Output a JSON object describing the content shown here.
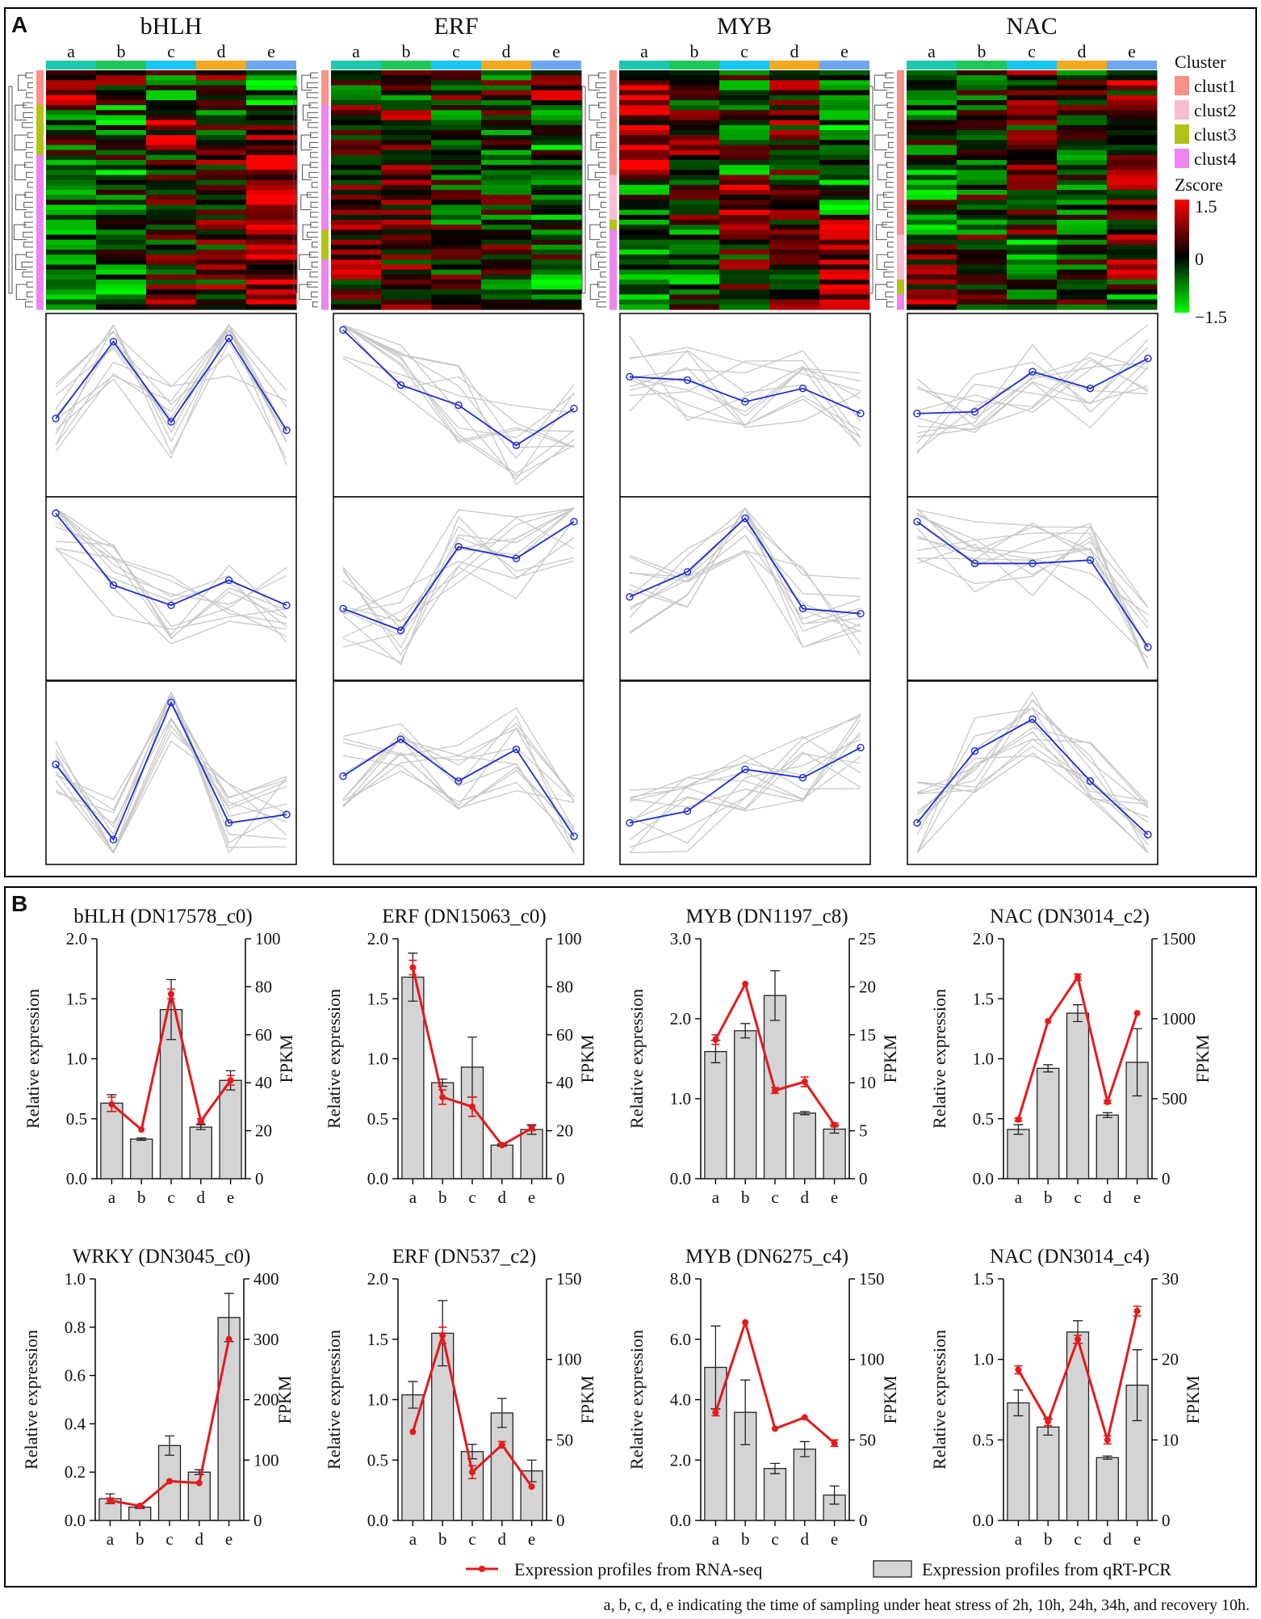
{
  "panel_a": {
    "letter": "A",
    "families": [
      "bHLH",
      "ERF",
      "MYB",
      "NAC"
    ],
    "sample_labels": [
      "a",
      "b",
      "c",
      "d",
      "e"
    ],
    "sample_colors": [
      "#1ec8b0",
      "#1fc75a",
      "#19c6ef",
      "#f2a922",
      "#6ea6f0"
    ],
    "cluster_legend": {
      "title": "Cluster",
      "items": [
        {
          "label": "clust1",
          "color": "#f7918a"
        },
        {
          "label": "clust2",
          "color": "#f7bcd0"
        },
        {
          "label": "clust3",
          "color": "#b2c217"
        },
        {
          "label": "clust4",
          "color": "#ee84ee"
        }
      ]
    },
    "zscore_legend": {
      "title": "Zscore",
      "ticks": [
        "1.5",
        "0",
        "−1.5"
      ],
      "colors": {
        "high": "#ff0000",
        "mid": "#000000",
        "low": "#00ff00"
      }
    },
    "heatmaps": [
      {
        "family": "bHLH",
        "rows": 48,
        "cluster_bar": [
          [
            "clust1",
            0.14
          ],
          [
            "clust3",
            0.2
          ],
          [
            "clust4",
            0.66
          ]
        ]
      },
      {
        "family": "ERF",
        "rows": 48,
        "cluster_bar": [
          [
            "clust1",
            0.14
          ],
          [
            "clust4",
            0.52
          ],
          [
            "clust3",
            0.12
          ],
          [
            "clust4",
            0.22
          ]
        ]
      },
      {
        "family": "MYB",
        "rows": 48,
        "cluster_bar": [
          [
            "clust1",
            0.44
          ],
          [
            "clust2",
            0.19
          ],
          [
            "clust3",
            0.04
          ],
          [
            "clust4",
            0.33
          ]
        ]
      },
      {
        "family": "NAC",
        "rows": 48,
        "cluster_bar": [
          [
            "clust1",
            0.68
          ],
          [
            "clust2",
            0.18
          ],
          [
            "clust3",
            0.06
          ],
          [
            "clust4",
            0.08
          ]
        ]
      }
    ],
    "profiles": [
      [
        {
          "mean": [
            0.42,
            0.88,
            0.4,
            0.9,
            0.35
          ]
        },
        {
          "mean": [
            0.95,
            0.52,
            0.4,
            0.55,
            0.4
          ]
        },
        {
          "mean": [
            0.55,
            0.1,
            0.92,
            0.2,
            0.25
          ]
        }
      ],
      [
        {
          "mean": [
            0.95,
            0.62,
            0.5,
            0.26,
            0.48
          ]
        },
        {
          "mean": [
            0.38,
            0.25,
            0.75,
            0.68,
            0.9
          ]
        },
        {
          "mean": [
            0.48,
            0.7,
            0.45,
            0.64,
            0.12
          ]
        }
      ],
      [
        {
          "mean": [
            0.67,
            0.65,
            0.52,
            0.6,
            0.45
          ]
        },
        {
          "mean": [
            0.45,
            0.6,
            0.92,
            0.38,
            0.35
          ]
        },
        {
          "mean": [
            0.2,
            0.27,
            0.52,
            0.47,
            0.65
          ]
        }
      ],
      [
        {
          "mean": [
            0.45,
            0.46,
            0.7,
            0.6,
            0.78
          ]
        },
        {
          "mean": [
            0.9,
            0.65,
            0.65,
            0.67,
            0.15
          ]
        },
        {
          "mean": [
            0.2,
            0.63,
            0.82,
            0.45,
            0.13
          ]
        }
      ]
    ]
  },
  "panel_b": {
    "letter": "B",
    "left_axis_label": "Relative expression",
    "right_axis_label": "FPKM",
    "categories": [
      "a",
      "b",
      "c",
      "d",
      "e"
    ],
    "legend": {
      "line": "Expression profiles from RNA-seq",
      "bar": "Expression profiles from qRT-PCR"
    },
    "footnote": "a, b, c, d, e indicating the time of sampling under heat stress of 2h, 10h, 24h, 34h, and recovery 10h."
  },
  "chart_data": [
    {
      "type": "bar",
      "title": "bHLH (DN17578_c0)",
      "categories": [
        "a",
        "b",
        "c",
        "d",
        "e"
      ],
      "ylabel": "Relative expression",
      "y2label": "FPKM",
      "ylim": [
        0,
        2.0
      ],
      "yticks": [
        "0.0",
        "0.5",
        "1.0",
        "1.5",
        "2.0"
      ],
      "y2lim": [
        0,
        100
      ],
      "y2ticks": [
        "0",
        "20",
        "40",
        "60",
        "80",
        "100"
      ],
      "series": [
        {
          "name": "Expression profiles from qRT-PCR",
          "axis": "left",
          "values": [
            0.63,
            0.33,
            1.41,
            0.43,
            0.82
          ],
          "errors": [
            0.07,
            0.01,
            0.25,
            0.02,
            0.08
          ]
        },
        {
          "name": "Expression profiles from RNA-seq",
          "axis": "right",
          "values": [
            31,
            20.5,
            77,
            24,
            41
          ],
          "errors": [
            3,
            0,
            2,
            1,
            2
          ]
        }
      ]
    },
    {
      "type": "bar",
      "title": "ERF (DN15063_c0)",
      "categories": [
        "a",
        "b",
        "c",
        "d",
        "e"
      ],
      "ylabel": "Relative expression",
      "y2label": "FPKM",
      "ylim": [
        0,
        2.0
      ],
      "yticks": [
        "0.0",
        "0.5",
        "1.0",
        "1.5",
        "2.0"
      ],
      "y2lim": [
        0,
        100
      ],
      "y2ticks": [
        "0",
        "20",
        "40",
        "60",
        "80",
        "100"
      ],
      "series": [
        {
          "name": "Expression profiles from qRT-PCR",
          "axis": "left",
          "values": [
            1.68,
            0.8,
            0.93,
            0.28,
            0.41
          ],
          "errors": [
            0.2,
            0.03,
            0.25,
            0.01,
            0.04
          ]
        },
        {
          "name": "Expression profiles from RNA-seq",
          "axis": "right",
          "values": [
            88,
            34,
            30,
            14,
            21
          ],
          "errors": [
            3,
            3,
            4,
            0,
            1
          ]
        }
      ]
    },
    {
      "type": "bar",
      "title": "MYB (DN1197_c8)",
      "categories": [
        "a",
        "b",
        "c",
        "d",
        "e"
      ],
      "ylabel": "Relative expression",
      "y2label": "FPKM",
      "ylim": [
        0,
        3.0
      ],
      "yticks": [
        "0.0",
        "1.0",
        "2.0",
        "3.0"
      ],
      "y2lim": [
        0,
        25
      ],
      "y2ticks": [
        "0",
        "5",
        "10",
        "15",
        "20",
        "25"
      ],
      "series": [
        {
          "name": "Expression profiles from qRT-PCR",
          "axis": "left",
          "values": [
            1.59,
            1.85,
            2.29,
            0.82,
            0.62
          ],
          "errors": [
            0.14,
            0.09,
            0.31,
            0.02,
            0.05
          ]
        },
        {
          "name": "Expression profiles from RNA-seq",
          "axis": "right",
          "values": [
            14.5,
            20.3,
            9.2,
            10.1,
            5.6
          ],
          "errors": [
            0.5,
            0,
            0.3,
            0.5,
            0.2
          ]
        }
      ]
    },
    {
      "type": "bar",
      "title": "NAC (DN3014_c2)",
      "categories": [
        "a",
        "b",
        "c",
        "d",
        "e"
      ],
      "ylabel": "Relative expression",
      "y2label": "FPKM",
      "ylim": [
        0,
        2.0
      ],
      "yticks": [
        "0.0",
        "0.5",
        "1.0",
        "1.5",
        "2.0"
      ],
      "y2lim": [
        0,
        1500
      ],
      "y2ticks": [
        "0",
        "500",
        "1000",
        "1500"
      ],
      "series": [
        {
          "name": "Expression profiles from qRT-PCR",
          "axis": "left",
          "values": [
            0.41,
            0.92,
            1.38,
            0.53,
            0.97
          ],
          "errors": [
            0.04,
            0.03,
            0.07,
            0.02,
            0.28
          ]
        },
        {
          "name": "Expression profiles from RNA-seq",
          "axis": "right",
          "values": [
            370,
            985,
            1260,
            480,
            1035
          ],
          "errors": [
            10,
            0,
            20,
            10,
            0
          ]
        }
      ]
    },
    {
      "type": "bar",
      "title": "WRKY (DN3045_c0)",
      "categories": [
        "a",
        "b",
        "c",
        "d",
        "e"
      ],
      "ylabel": "Relative expression",
      "y2label": "FPKM",
      "ylim": [
        0,
        1.0
      ],
      "yticks": [
        "0.0",
        "0.2",
        "0.4",
        "0.6",
        "0.8",
        "1.0"
      ],
      "y2lim": [
        0,
        400
      ],
      "y2ticks": [
        "0",
        "100",
        "200",
        "300",
        "400"
      ],
      "series": [
        {
          "name": "Expression profiles from qRT-PCR",
          "axis": "left",
          "values": [
            0.09,
            0.055,
            0.31,
            0.2,
            0.84
          ],
          "errors": [
            0.02,
            0.005,
            0.04,
            0.01,
            0.1
          ]
        },
        {
          "name": "Expression profiles from RNA-seq",
          "axis": "right",
          "values": [
            33,
            24,
            65,
            62,
            300
          ],
          "errors": [
            4,
            0,
            0,
            0,
            0
          ]
        }
      ]
    },
    {
      "type": "bar",
      "title": "ERF (DN537_c2)",
      "categories": [
        "a",
        "b",
        "c",
        "d",
        "e"
      ],
      "ylabel": "Relative expression",
      "y2label": "FPKM",
      "ylim": [
        0,
        2.0
      ],
      "yticks": [
        "0.0",
        "0.5",
        "1.0",
        "1.5",
        "2.0"
      ],
      "y2lim": [
        0,
        150
      ],
      "y2ticks": [
        "0",
        "50",
        "100",
        "150"
      ],
      "series": [
        {
          "name": "Expression profiles from qRT-PCR",
          "axis": "left",
          "values": [
            1.04,
            1.55,
            0.57,
            0.89,
            0.41
          ],
          "errors": [
            0.11,
            0.27,
            0.06,
            0.12,
            0.09
          ]
        },
        {
          "name": "Expression profiles from RNA-seq",
          "axis": "right",
          "values": [
            55,
            115,
            30,
            47,
            21
          ],
          "errors": [
            0,
            5,
            4,
            2,
            0
          ]
        }
      ]
    },
    {
      "type": "bar",
      "title": "MYB (DN6275_c4)",
      "categories": [
        "a",
        "b",
        "c",
        "d",
        "e"
      ],
      "ylabel": "Relative expression",
      "y2label": "FPKM",
      "ylim": [
        0,
        8.0
      ],
      "yticks": [
        "0.0",
        "2.0",
        "4.0",
        "6.0",
        "8.0"
      ],
      "y2lim": [
        0,
        150
      ],
      "y2ticks": [
        "0",
        "50",
        "100",
        "150"
      ],
      "series": [
        {
          "name": "Expression profiles from qRT-PCR",
          "axis": "left",
          "values": [
            5.07,
            3.58,
            1.72,
            2.36,
            0.84
          ],
          "errors": [
            1.37,
            1.07,
            0.17,
            0.25,
            0.3
          ]
        },
        {
          "name": "Expression profiles from RNA-seq",
          "axis": "right",
          "values": [
            67,
            123,
            57,
            64,
            48
          ],
          "errors": [
            2,
            0,
            0,
            0,
            2
          ]
        }
      ]
    },
    {
      "type": "bar",
      "title": "NAC (DN3014_c4)",
      "categories": [
        "a",
        "b",
        "c",
        "d",
        "e"
      ],
      "ylabel": "Relative expression",
      "y2label": "FPKM",
      "ylim": [
        0,
        1.5
      ],
      "yticks": [
        "0.0",
        "0.5",
        "1.0",
        "1.5"
      ],
      "y2lim": [
        0,
        30
      ],
      "y2ticks": [
        "0",
        "10",
        "20",
        "30"
      ],
      "series": [
        {
          "name": "Expression profiles from qRT-PCR",
          "axis": "left",
          "values": [
            0.73,
            0.58,
            1.17,
            0.39,
            0.84
          ],
          "errors": [
            0.08,
            0.05,
            0.07,
            0.01,
            0.22
          ]
        },
        {
          "name": "Expression profiles from RNA-seq",
          "axis": "right",
          "values": [
            18.7,
            12.3,
            22.5,
            10,
            26
          ],
          "errors": [
            0.5,
            0.5,
            0.5,
            0.5,
            0.6
          ]
        }
      ]
    }
  ]
}
